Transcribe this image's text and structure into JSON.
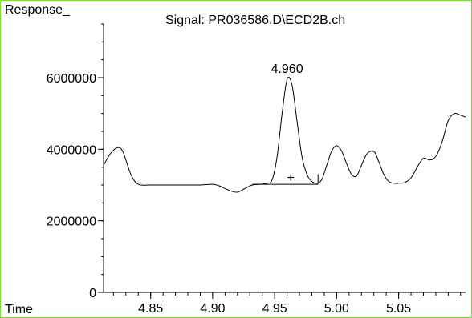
{
  "chart_data": {
    "type": "line",
    "title": "Signal: PR036586.D\\ECD2B.ch",
    "ylabel": "Response_",
    "xlabel": "Time",
    "xlim": [
      4.812,
      5.104
    ],
    "ylim": [
      0,
      7500000
    ],
    "yticks": [
      0,
      2000000,
      4000000,
      6000000
    ],
    "ytick_labels": [
      "0",
      "2000000",
      "4000000",
      "6000000"
    ],
    "xticks": [
      4.85,
      4.9,
      4.95,
      5.0,
      5.05
    ],
    "xtick_labels": [
      "4.85",
      "4.90",
      "4.95",
      "5.00",
      "5.05"
    ],
    "grid": false,
    "series": [
      {
        "x": [
          4.812,
          4.818,
          4.824,
          4.828,
          4.834,
          4.84,
          4.85,
          4.86,
          4.87,
          4.88,
          4.89,
          4.9,
          4.905,
          4.91,
          4.915,
          4.92,
          4.926,
          4.932,
          4.938,
          4.944,
          4.948,
          4.952,
          4.956,
          4.96,
          4.964,
          4.968,
          4.972,
          4.976,
          4.98,
          4.984,
          4.988,
          4.992,
          4.996,
          5.0,
          5.004,
          5.008,
          5.012,
          5.016,
          5.02,
          5.024,
          5.028,
          5.031,
          5.034,
          5.038,
          5.042,
          5.046,
          5.05,
          5.055,
          5.06,
          5.065,
          5.07,
          5.075,
          5.08,
          5.085,
          5.09,
          5.095,
          5.1,
          5.104
        ],
        "y": [
          3550000,
          3900000,
          4050000,
          3900000,
          3300000,
          3020000,
          3000000,
          3000000,
          3000000,
          3000000,
          3000000,
          3020000,
          2980000,
          2900000,
          2830000,
          2800000,
          2900000,
          3000000,
          3020000,
          3050000,
          3150000,
          3800000,
          5000000,
          5950000,
          5800000,
          4800000,
          3800000,
          3300000,
          3100000,
          3050000,
          3150000,
          3550000,
          3950000,
          4100000,
          3950000,
          3600000,
          3300000,
          3250000,
          3550000,
          3850000,
          3950000,
          3900000,
          3650000,
          3300000,
          3100000,
          3050000,
          3050000,
          3070000,
          3200000,
          3500000,
          3750000,
          3700000,
          3800000,
          4200000,
          4800000,
          5000000,
          4950000,
          4900000
        ]
      }
    ],
    "peak_label": "4.960",
    "peak_x": 4.96,
    "peak_y": 5950000,
    "integration": {
      "x_start": 4.932,
      "x_end": 4.985,
      "baseline_y": 3020000,
      "marker_x": 4.963,
      "marker_y": 3220000,
      "marker": "+"
    },
    "border_color": "#7ddc3a",
    "line_color": "#000000"
  }
}
